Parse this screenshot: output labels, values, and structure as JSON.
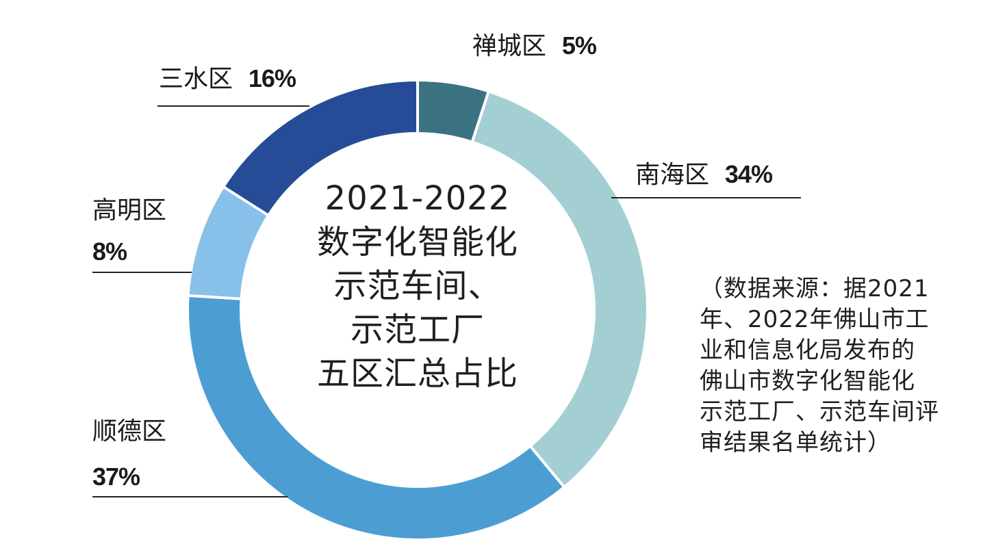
{
  "chart_data": {
    "type": "pie",
    "categories": [
      "禅城区",
      "南海区",
      "顺德区",
      "高明区",
      "三水区"
    ],
    "values": [
      5,
      34,
      37,
      8,
      16
    ],
    "value_labels": [
      "5%",
      "34%",
      "37%",
      "8%",
      "16%"
    ],
    "colors": [
      "#3b7281",
      "#a3cfd2",
      "#4c9ed2",
      "#87c0e8",
      "#264c98"
    ],
    "title_lines": [
      "2021-2022",
      "数字化智能化",
      "示范车间、",
      "示范工厂",
      "五区汇总占比"
    ]
  },
  "source_note_lines": [
    "（数据来源：据2021",
    "年、2022年佛山市工",
    "业和信息化局发布的",
    "佛山市数字化智能化",
    "示范工厂、示范车间评",
    "审结果名单统计）"
  ]
}
